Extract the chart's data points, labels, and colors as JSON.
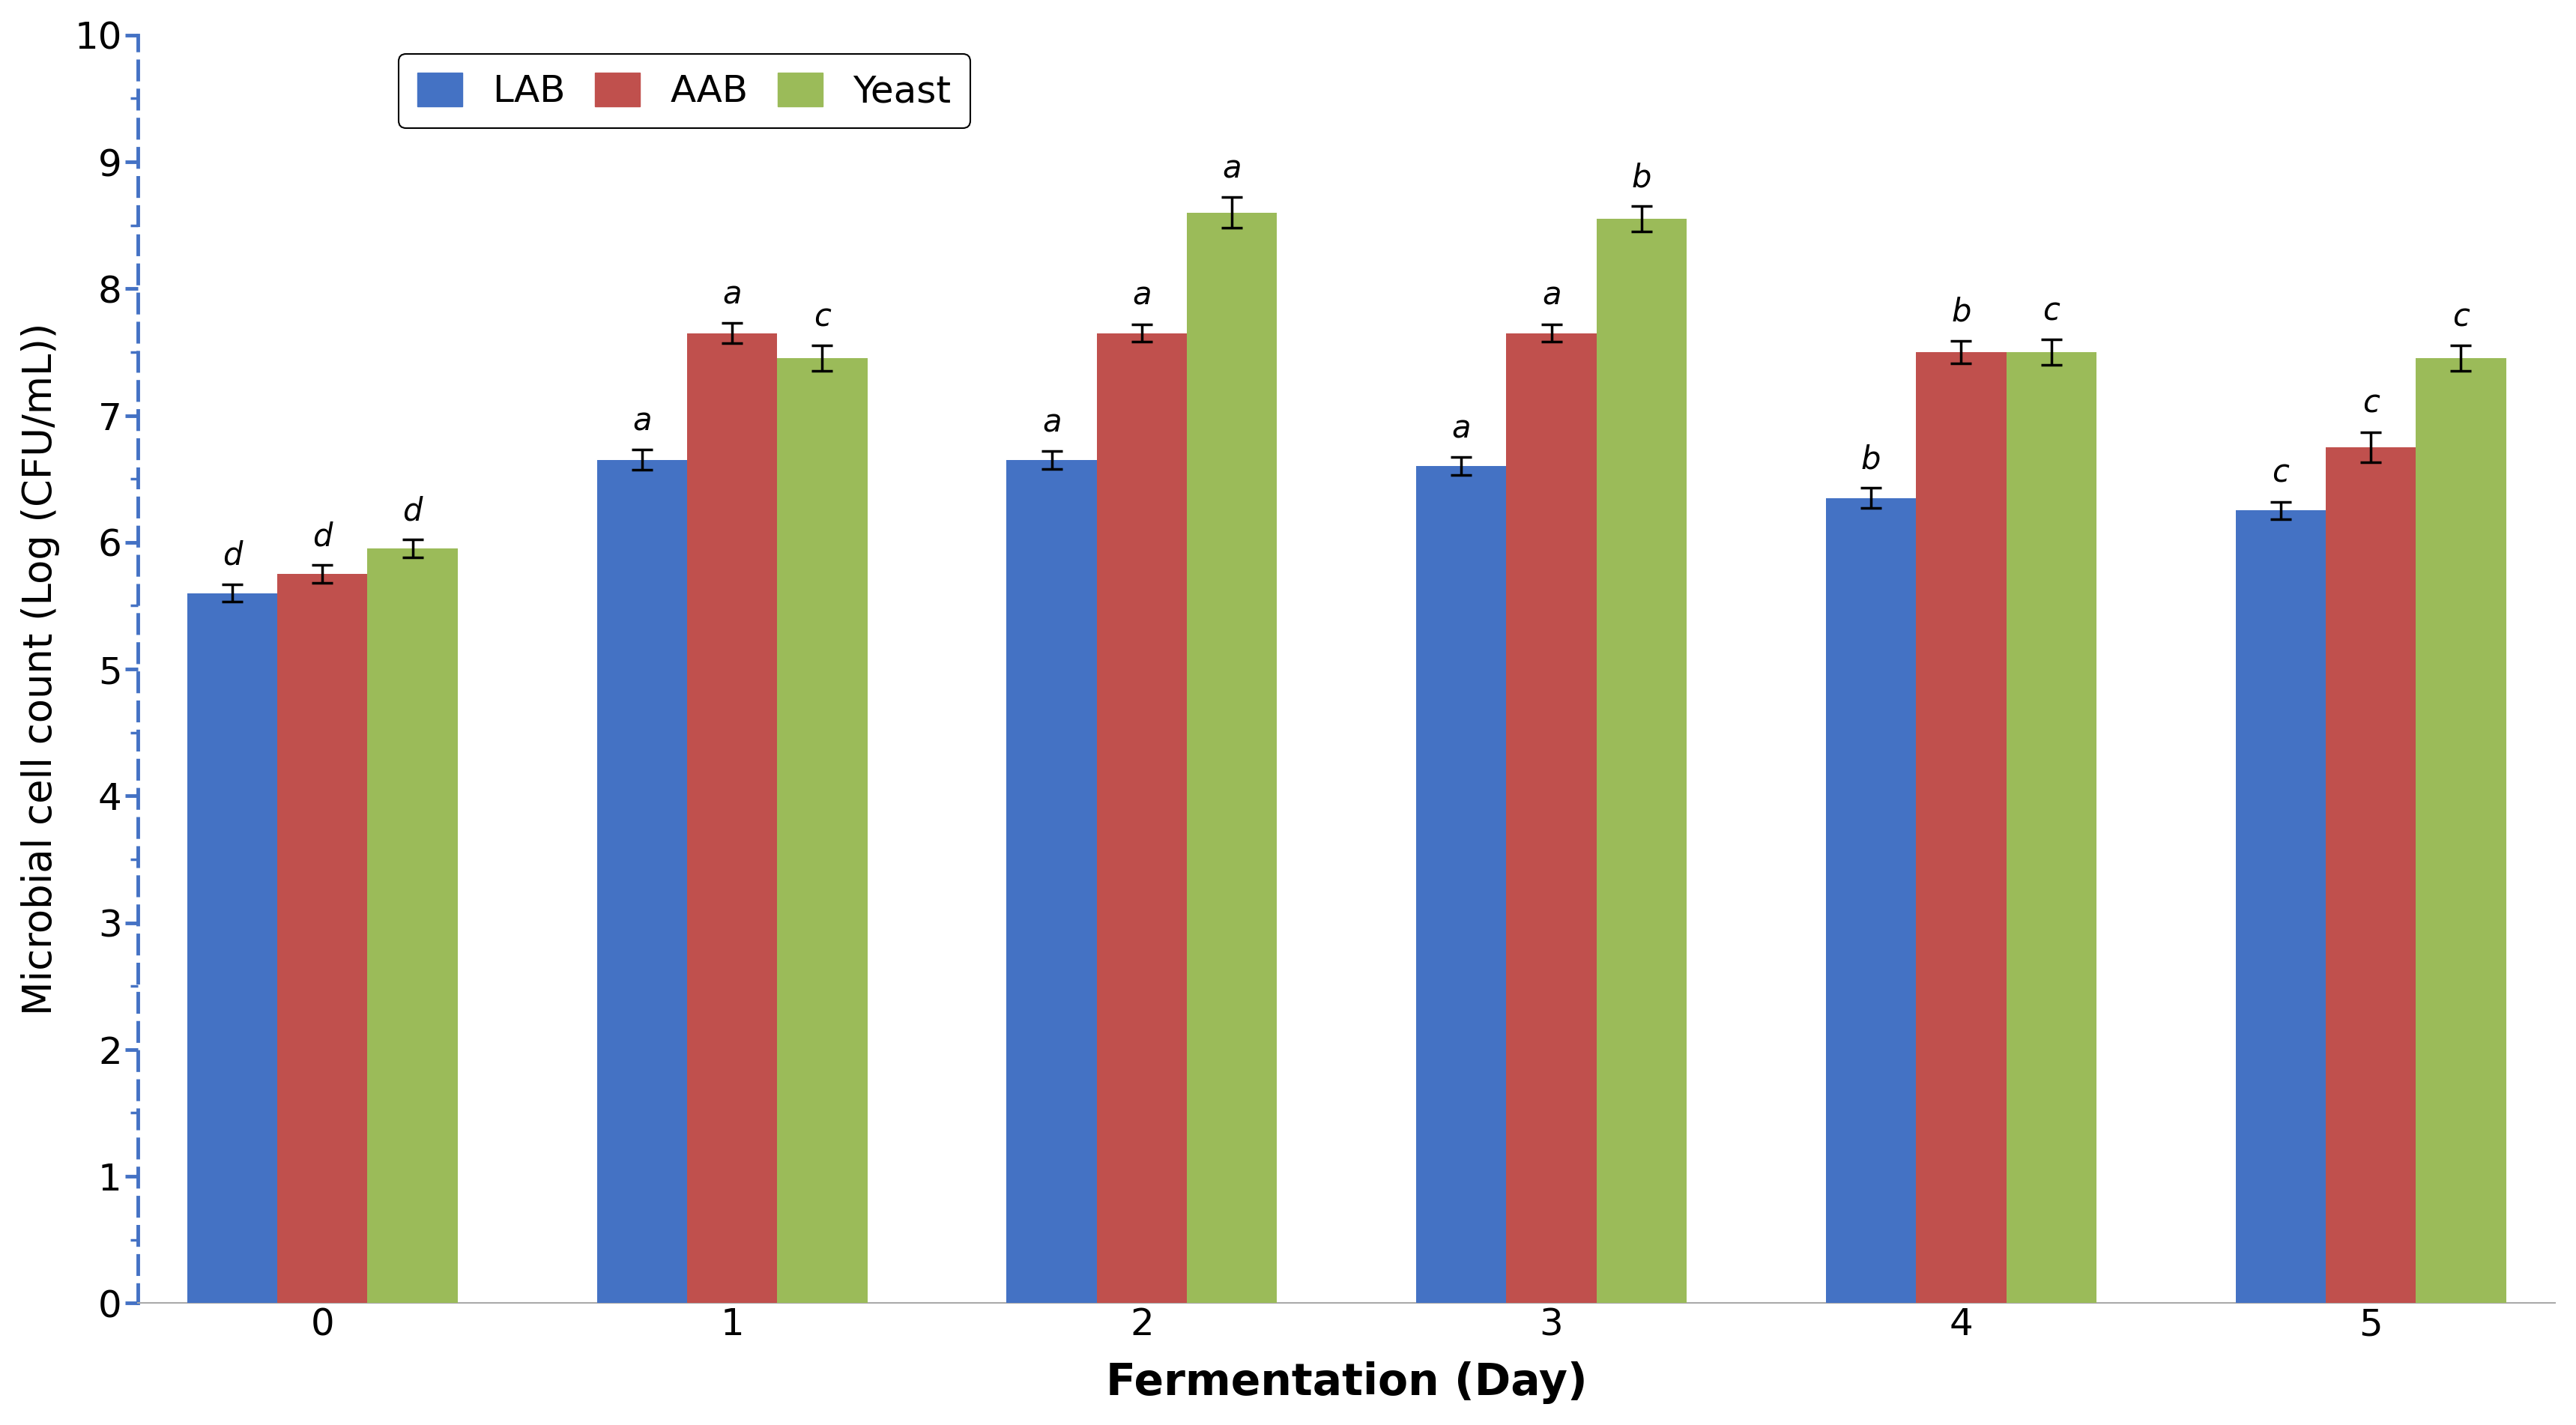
{
  "days": [
    0,
    1,
    2,
    3,
    4,
    5
  ],
  "day_labels": [
    "0",
    "1",
    "2",
    "3",
    "4",
    "5"
  ],
  "LAB_values": [
    5.6,
    6.65,
    6.65,
    6.6,
    6.35,
    6.25
  ],
  "AAB_values": [
    5.75,
    7.65,
    7.65,
    7.65,
    7.5,
    6.75
  ],
  "Yeast_values": [
    5.95,
    7.45,
    8.6,
    8.55,
    7.5,
    7.45
  ],
  "LAB_errors": [
    0.07,
    0.08,
    0.07,
    0.07,
    0.08,
    0.07
  ],
  "AAB_errors": [
    0.07,
    0.08,
    0.07,
    0.07,
    0.09,
    0.12
  ],
  "Yeast_errors": [
    0.07,
    0.1,
    0.12,
    0.1,
    0.1,
    0.1
  ],
  "LAB_letters": [
    "d",
    "a",
    "a",
    "a",
    "b",
    "c"
  ],
  "AAB_letters": [
    "d",
    "a",
    "a",
    "a",
    "b",
    "c"
  ],
  "Yeast_letters": [
    "d",
    "c",
    "a",
    "b",
    "c",
    "c"
  ],
  "LAB_color": "#4472C4",
  "AAB_color": "#C0504D",
  "Yeast_color": "#9BBB59",
  "bar_width": 0.22,
  "xlabel": "Fermentation (Day)",
  "ylabel": "Microbial cell count (Log (CFU/mL))",
  "ylim": [
    0,
    10
  ],
  "yticks": [
    0,
    1,
    2,
    3,
    4,
    5,
    6,
    7,
    8,
    9,
    10
  ],
  "legend_labels": [
    "LAB",
    "AAB",
    "Yeast"
  ],
  "axis_color": "#4472C4",
  "xlabel_fontsize": 42,
  "ylabel_fontsize": 38,
  "tick_fontsize": 36,
  "legend_fontsize": 36,
  "letter_fontsize": 30,
  "background_color": "#ffffff"
}
